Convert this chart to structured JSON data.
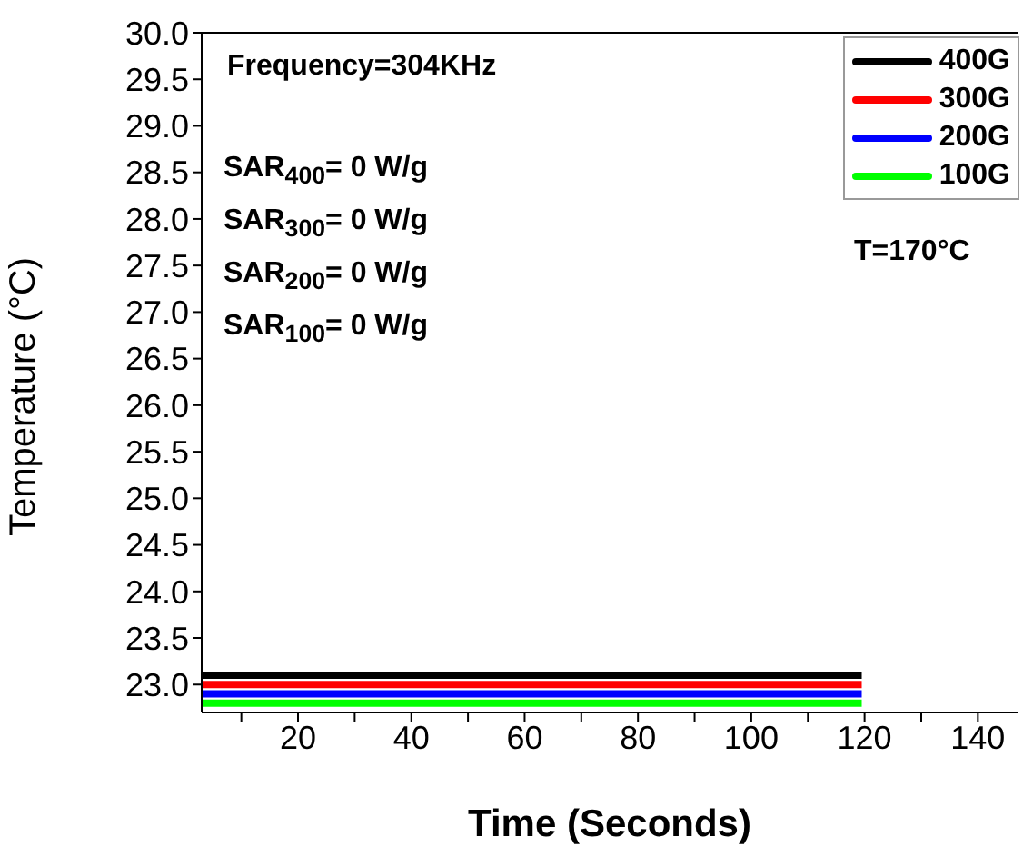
{
  "chart_data": {
    "type": "line",
    "xlabel": "Time (Seconds)",
    "ylabel": "Temperature (°C)",
    "xlim": [
      3,
      147
    ],
    "xticks": [
      {
        "value": 10,
        "label": null
      },
      20,
      {
        "value": 30,
        "label": null
      },
      40,
      {
        "value": 50,
        "label": null
      },
      60,
      {
        "value": 70,
        "label": null
      },
      80,
      {
        "value": 90,
        "label": null
      },
      100,
      {
        "value": 110,
        "label": null
      },
      120,
      {
        "value": 130,
        "label": null
      },
      140
    ],
    "ylim": [
      22.7,
      30
    ],
    "yticks": [
      {
        "value": 23,
        "label": "23.0"
      },
      23.5,
      {
        "value": 24,
        "label": "24.0"
      },
      24.5,
      {
        "value": 25,
        "label": "25.0"
      },
      25.5,
      {
        "value": 26,
        "label": "26.0"
      },
      26.5,
      {
        "value": 27,
        "label": "27.0"
      },
      27.5,
      {
        "value": 28,
        "label": "28.0"
      },
      28.5,
      {
        "value": 29,
        "label": "29.0"
      },
      29.5,
      {
        "value": 30,
        "label": "30.0"
      }
    ],
    "x": [
      3,
      119.5
    ],
    "series": [
      {
        "name": "400G",
        "color": "#000000",
        "values": [
          23.1,
          23.1
        ]
      },
      {
        "name": "300G",
        "color": "#ff0000",
        "values": [
          23.0,
          23.0
        ]
      },
      {
        "name": "200G",
        "color": "#0000ff",
        "values": [
          22.9,
          22.9
        ]
      },
      {
        "name": "100G",
        "color": "#00ff00",
        "values": [
          22.8,
          22.8
        ]
      }
    ],
    "legend": "top right",
    "grid": false,
    "marker": "none",
    "line_style": "solid",
    "annotations": [
      "Frequency=304KHz",
      "SAR$_{400}$= 0 W/g",
      "SAR$_{300}$= 0 W/g",
      "SAR$_{200}$= 0 W/g",
      "SAR$_{100}$= 0 W/g",
      "T=170°C"
    ]
  }
}
